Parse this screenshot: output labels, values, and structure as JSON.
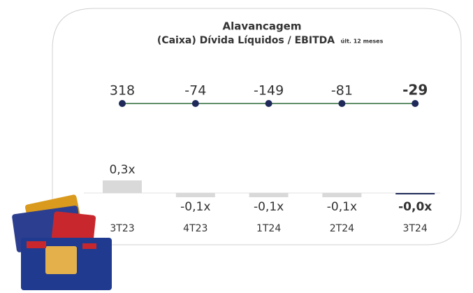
{
  "chart_data": {
    "type": "bar",
    "title": "Alavancagem",
    "subtitle": "(Caixa) Dívida Líquidos / EBITDA",
    "subtitle_note": "últ. 12 meses",
    "categories": [
      "3T23",
      "4T23",
      "1T24",
      "2T24",
      "3T24"
    ],
    "net_debt": [
      318,
      -74,
      -149,
      -81,
      -29
    ],
    "values": [
      0.3,
      -0.1,
      -0.1,
      -0.1,
      -0.0
    ],
    "value_labels": [
      "0,3x",
      "-0,1x",
      "-0,1x",
      "-0,1x",
      "-0,0x"
    ],
    "ylim": [
      -0.3,
      0.3
    ],
    "color": "#d9d9d9",
    "highlight_color": "#1f2a5a",
    "line_color": "#2e6b3a"
  }
}
